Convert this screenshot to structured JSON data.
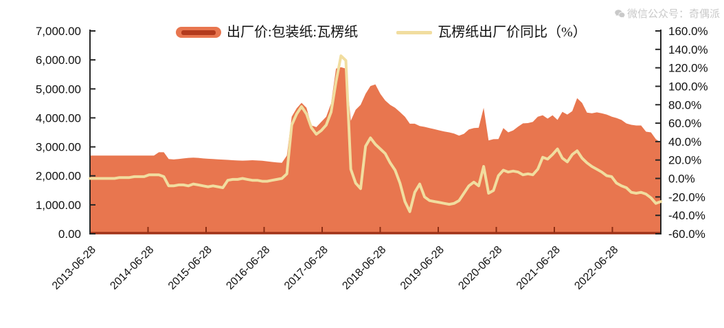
{
  "watermark": {
    "icon": "wechat-icon",
    "text": "微信公众号：奇偶派"
  },
  "legend": {
    "items": [
      {
        "label": "出厂价:包装纸:瓦楞纸",
        "type": "area",
        "fill": "#E8764F",
        "border": "#B33A1C"
      },
      {
        "label": "瓦楞纸出厂价同比（%）",
        "type": "line",
        "color": "#F1DD9F"
      }
    ]
  },
  "chart_data": {
    "type": "area+line",
    "title": "",
    "x_axis": {
      "start": "2013-07",
      "end": "2023-03",
      "sampling": "monthly",
      "tick_labels": [
        "2013-06-28",
        "2014-06-28",
        "2015-06-28",
        "2016-06-28",
        "2017-06-28",
        "2018-06-28",
        "2019-06-28",
        "2020-06-28",
        "2021-06-28",
        "2022-06-28"
      ]
    },
    "left_axis": {
      "min": 0,
      "max": 7000,
      "step": 1000,
      "tick_labels": [
        "7,000.00",
        "6,000.00",
        "5,000.00",
        "4,000.00",
        "3,000.00",
        "2,000.00",
        "1,000.00",
        "0.00"
      ]
    },
    "right_axis": {
      "min": -60,
      "max": 160,
      "step": 20,
      "tick_labels": [
        "160.0%",
        "140.0%",
        "120.0%",
        "100.0%",
        "80.0%",
        "60.0%",
        "40.0%",
        "20.0%",
        "0.0%",
        "-20.0%",
        "-40.0%",
        "-60.0%"
      ]
    },
    "grid": false,
    "legend_position": "top-center",
    "series": [
      {
        "name": "出厂价:包装纸:瓦楞纸",
        "axis": "left",
        "type": "area",
        "fill": "#E8764F",
        "baseline_color": "#A03318",
        "values": [
          2700,
          2700,
          2700,
          2700,
          2700,
          2700,
          2700,
          2700,
          2700,
          2700,
          2700,
          2700,
          2700,
          2700,
          2815,
          2815,
          2580,
          2565,
          2580,
          2600,
          2620,
          2630,
          2620,
          2600,
          2590,
          2580,
          2570,
          2560,
          2550,
          2540,
          2530,
          2525,
          2530,
          2540,
          2530,
          2520,
          2500,
          2480,
          2460,
          2450,
          2700,
          4040,
          4330,
          4520,
          4350,
          3740,
          3680,
          3860,
          4040,
          4500,
          5700,
          5750,
          5700,
          3900,
          4280,
          4450,
          4830,
          5100,
          5155,
          4830,
          4600,
          4450,
          4350,
          4200,
          4040,
          3800,
          3800,
          3720,
          3690,
          3650,
          3610,
          3570,
          3530,
          3500,
          3460,
          3385,
          3450,
          3600,
          3650,
          3660,
          4350,
          3220,
          3265,
          3270,
          3650,
          3500,
          3570,
          3700,
          3810,
          3820,
          3860,
          4040,
          4090,
          3975,
          4090,
          3930,
          4210,
          4115,
          4233,
          4680,
          4517,
          4180,
          4160,
          4190,
          4160,
          4115,
          4043,
          3997,
          3930,
          3808,
          3761,
          3737,
          3737,
          3524,
          3500,
          3264,
          3150
        ]
      },
      {
        "name": "瓦楞纸出厂价同比（%）",
        "axis": "right",
        "type": "line",
        "color": "#F1DD9F",
        "width": 4,
        "values": [
          0,
          0,
          0,
          0,
          0,
          0,
          1,
          1,
          1,
          2,
          2,
          2,
          4,
          4,
          4,
          2,
          -8,
          -8,
          -7,
          -7,
          -8,
          -6,
          -7,
          -8,
          -9,
          -8,
          -9,
          -10,
          -2,
          -1,
          -1,
          0,
          -1,
          -2,
          -2,
          -3,
          -3,
          -2,
          -1,
          0,
          5,
          58,
          70,
          78,
          70,
          55,
          48,
          52,
          58,
          72,
          105,
          133,
          128,
          10,
          -5,
          -11,
          35,
          44,
          37,
          32,
          27,
          17,
          9,
          -5,
          -25,
          -36,
          -15,
          -6,
          -20,
          -24,
          -25,
          -26,
          -27,
          -28,
          -27,
          -24,
          -16,
          -8,
          -4,
          -8,
          13,
          -16,
          -13,
          3,
          9,
          7,
          8,
          7,
          4,
          5,
          4,
          10,
          23,
          21,
          26,
          32,
          22,
          18,
          26,
          30,
          22,
          17,
          13,
          10,
          7,
          3,
          2,
          -5,
          -8,
          -10,
          -15,
          -16,
          -15,
          -17,
          -21,
          -27,
          -25
        ]
      }
    ],
    "colors": {
      "axis_line": "#262626",
      "axis_text": "#111111",
      "x_tick": "#8C2D13",
      "watermark_text": "#C9C9C9"
    }
  }
}
